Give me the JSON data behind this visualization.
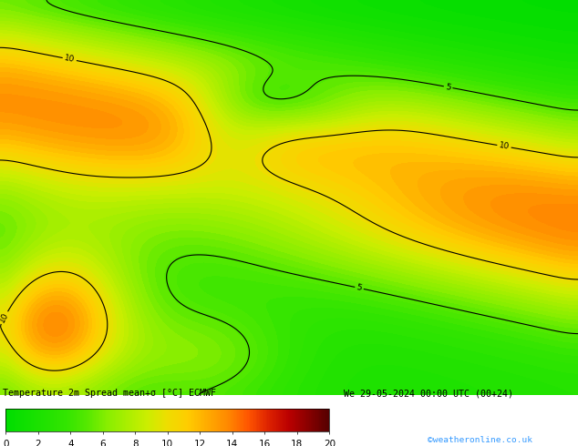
{
  "title_left": "Temperature 2m Spread mean+σ [°C] ECMWF",
  "title_right": "We 29-05-2024 00:00 UTC (00+24)",
  "credit": "©weatheronline.co.uk",
  "colorbar_ticks": [
    0,
    2,
    4,
    6,
    8,
    10,
    12,
    14,
    16,
    18,
    20
  ],
  "bg_color": "#ffffff",
  "contour_color": "#000000",
  "figsize": [
    6.34,
    4.9
  ],
  "dpi": 100,
  "cmap_colors": [
    "#00dd00",
    "#11e000",
    "#22e200",
    "#33e500",
    "#55e800",
    "#88ee00",
    "#aaee00",
    "#ccee00",
    "#eedd00",
    "#ffcc00",
    "#ffaa00",
    "#ff8800",
    "#ff5500",
    "#dd2200",
    "#bb0000",
    "#880000",
    "#550000"
  ],
  "contour_levels": [
    -5,
    0,
    5,
    10,
    15,
    20
  ],
  "contour_label_levels": [
    -5,
    0,
    5,
    10,
    15,
    20
  ]
}
